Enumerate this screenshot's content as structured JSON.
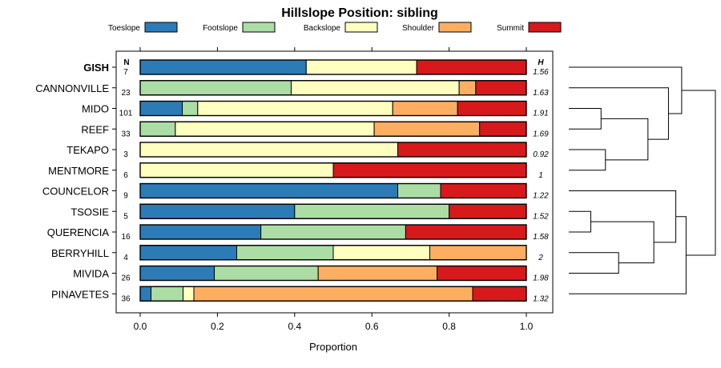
{
  "chart_data": {
    "type": "bar",
    "orientation": "horizontal-stacked",
    "title": "Hillslope Position: sibling",
    "xlabel": "Proportion",
    "ylabel": "",
    "xlim": [
      0,
      1
    ],
    "x_ticks": [
      "0.0",
      "0.2",
      "0.4",
      "0.6",
      "0.8",
      "1.0"
    ],
    "n_header": "N",
    "h_header": "H",
    "legend_position": "top",
    "series": [
      {
        "name": "Toeslope",
        "color": "#2c7bb6"
      },
      {
        "name": "Footslope",
        "color": "#abdda4"
      },
      {
        "name": "Backslope",
        "color": "#ffffbf"
      },
      {
        "name": "Shoulder",
        "color": "#fdae61"
      },
      {
        "name": "Summit",
        "color": "#d7191c"
      }
    ],
    "categories": [
      {
        "name": "GISH",
        "bold": true,
        "n": "7",
        "h": "1.56",
        "values": [
          0.43,
          0,
          0.286,
          0,
          0.284
        ]
      },
      {
        "name": "CANNONVILLE",
        "bold": false,
        "n": "23",
        "h": "1.63",
        "values": [
          0,
          0.391,
          0.435,
          0.043,
          0.131
        ]
      },
      {
        "name": "MIDO",
        "bold": false,
        "n": "101",
        "h": "1.91",
        "values": [
          0.109,
          0.04,
          0.505,
          0.168,
          0.178
        ]
      },
      {
        "name": "REEF",
        "bold": false,
        "n": "33",
        "h": "1.69",
        "values": [
          0,
          0.091,
          0.515,
          0.273,
          0.121
        ]
      },
      {
        "name": "TEKAPO",
        "bold": false,
        "n": "3",
        "h": "0.92",
        "values": [
          0,
          0,
          0.667,
          0,
          0.333
        ]
      },
      {
        "name": "MENTMORE",
        "bold": false,
        "n": "6",
        "h": "1",
        "values": [
          0,
          0,
          0.5,
          0,
          0.5
        ]
      },
      {
        "name": "COUNCELOR",
        "bold": false,
        "n": "9",
        "h": "1.22",
        "values": [
          0.667,
          0.111,
          0,
          0,
          0.222
        ]
      },
      {
        "name": "TSOSIE",
        "bold": false,
        "n": "5",
        "h": "1.52",
        "values": [
          0.4,
          0.4,
          0,
          0,
          0.2
        ]
      },
      {
        "name": "QUERENCIA",
        "bold": false,
        "n": "16",
        "h": "1.58",
        "values": [
          0.3125,
          0.375,
          0,
          0,
          0.3125
        ]
      },
      {
        "name": "BERRYHILL",
        "bold": false,
        "n": "4",
        "h": "2",
        "values": [
          0.25,
          0.25,
          0.25,
          0.25,
          0
        ]
      },
      {
        "name": "MIVIDA",
        "bold": false,
        "n": "26",
        "h": "1.98",
        "values": [
          0.192,
          0.269,
          0,
          0.308,
          0.231
        ]
      },
      {
        "name": "PINAVETES",
        "bold": false,
        "n": "36",
        "h": "1.32",
        "values": [
          0.028,
          0.083,
          0.028,
          0.722,
          0.139
        ]
      }
    ],
    "dendrogram": {
      "note": "hierarchical clustering of the rows, leaf order top to bottom",
      "leaves": [
        "GISH",
        "CANNONVILLE",
        "MIDO",
        "REEF",
        "TEKAPO",
        "MENTMORE",
        "COUNCELOR",
        "TSOSIE",
        "QUERENCIA",
        "BERRYHILL",
        "MIVIDA",
        "PINAVETES"
      ],
      "merges": [
        {
          "a": "leaf:2",
          "b": "leaf:3",
          "height": 0.22
        },
        {
          "a": "leaf:4",
          "b": "leaf:5",
          "height": 0.25
        },
        {
          "a": "leaf:7",
          "b": "leaf:8",
          "height": 0.15
        },
        {
          "a": "leaf:9",
          "b": "leaf:10",
          "height": 0.34
        },
        {
          "a": "node:0",
          "b": "node:1",
          "height": 0.54
        },
        {
          "a": "leaf:1",
          "b": "node:4",
          "height": 0.68
        },
        {
          "a": "node:2",
          "b": "node:3",
          "height": 0.58
        },
        {
          "a": "leaf:6",
          "b": "node:6",
          "height": 0.73
        },
        {
          "a": "leaf:0",
          "b": "node:5",
          "height": 0.77
        },
        {
          "a": "node:7",
          "b": "leaf:11",
          "height": 0.8
        },
        {
          "a": "node:8",
          "b": "node:9",
          "height": 1.0
        }
      ]
    }
  }
}
